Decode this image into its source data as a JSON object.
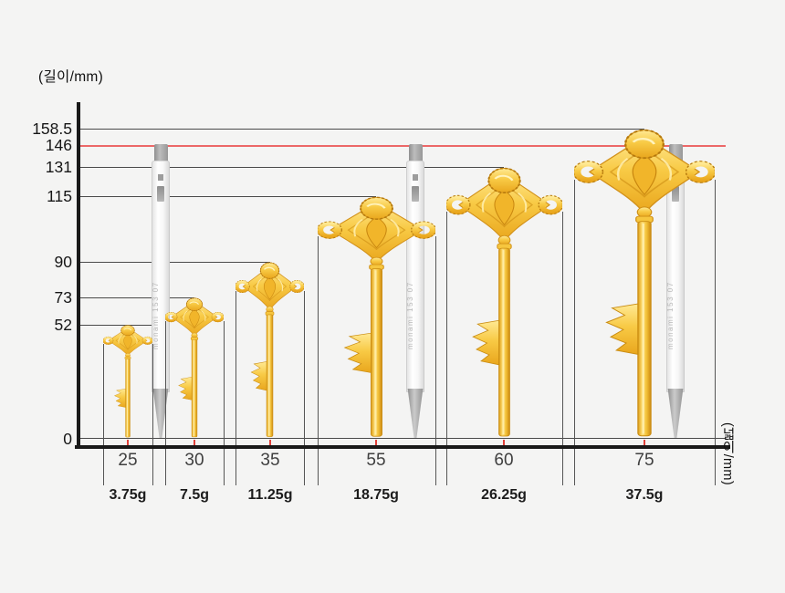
{
  "chart_data": {
    "type": "pictorial_size_comparison",
    "subject": "gold keys of increasing size compared against ballpoint pens",
    "ylabel": "(길이/mm)",
    "xlabel": "(넓이/mm)",
    "y_ticks": [
      "0",
      "52",
      "73",
      "90",
      "115",
      "131",
      "146",
      "158.5"
    ],
    "highlight_line": {
      "value": "146",
      "color": "#ec6868"
    },
    "items": [
      {
        "length_mm": "52",
        "width_mm": "25",
        "weight": "3.75g"
      },
      {
        "length_mm": "73",
        "width_mm": "30",
        "weight": "7.5g"
      },
      {
        "length_mm": "90",
        "width_mm": "35",
        "weight": "11.25g"
      },
      {
        "length_mm": "115",
        "width_mm": "55",
        "weight": "18.75g"
      },
      {
        "length_mm": "131",
        "width_mm": "60",
        "weight": "26.25g"
      },
      {
        "length_mm": "158.5",
        "width_mm": "75",
        "weight": "37.5g"
      }
    ],
    "reference_pens": {
      "count": 3,
      "length_mm": "146",
      "barrel_text": "monami 153 07"
    },
    "colors": {
      "background": "#f4f4f3",
      "gridline": "#4a4a4a",
      "axis": "#191919",
      "highlight_red": "#ec6868",
      "center_tick_red": "#e0403a",
      "key_gold": "#f6c63e",
      "pen_gray": "#9d9d9d"
    }
  }
}
